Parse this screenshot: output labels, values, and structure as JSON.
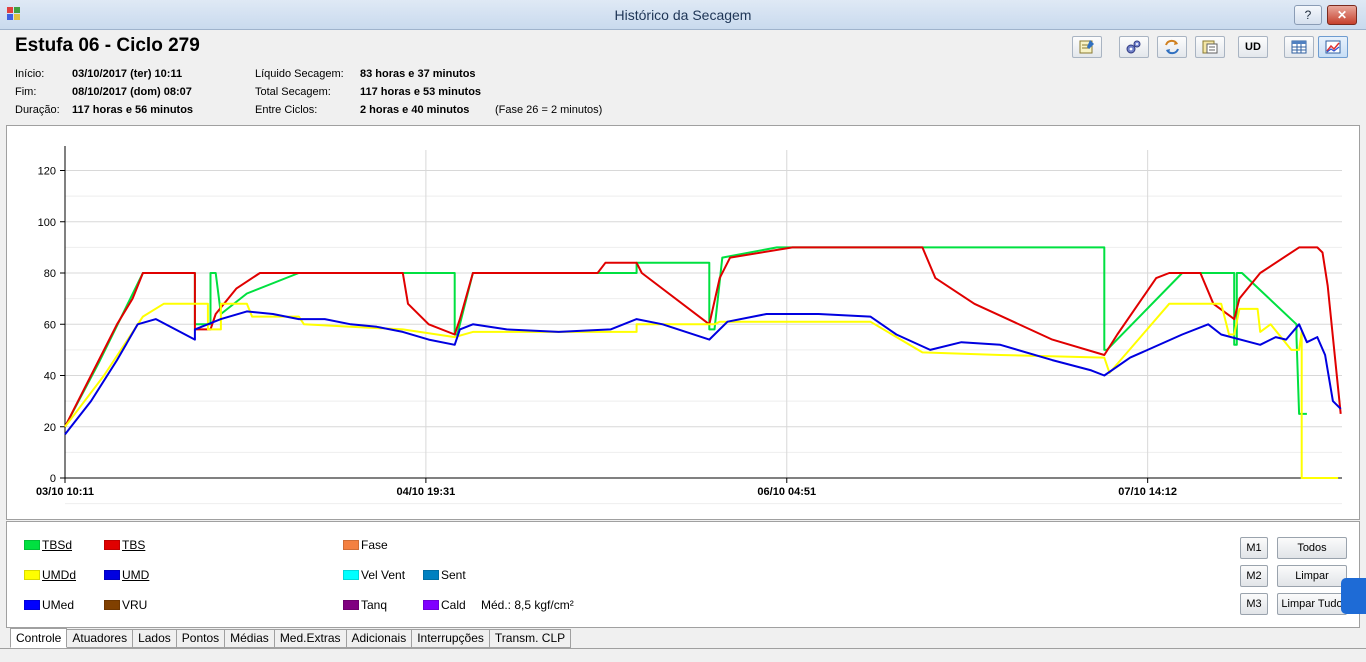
{
  "window": {
    "title": "Histórico da Secagem",
    "help_label": "?",
    "close_label": "✕"
  },
  "header": {
    "title": "Estufa 06 - Ciclo 279",
    "inicio_label": "Início:",
    "inicio_value": "03/10/2017 (ter) 10:11",
    "fim_label": "Fim:",
    "fim_value": "08/10/2017 (dom) 08:07",
    "duracao_label": "Duração:",
    "duracao_value": "117 horas e 56 minutos",
    "liquido_label": "Líquido Secagem:",
    "liquido_value": "83 horas e 37 minutos",
    "total_label": "Total Secagem:",
    "total_value": "117 horas e 53 minutos",
    "entre_label": "Entre Ciclos:",
    "entre_value": "2 horas e 40 minutos",
    "fase_note": "(Fase 26 = 2 minutos)"
  },
  "toolbar": {
    "icons": [
      "report-icon",
      "settings-icon",
      "refresh-icon",
      "export-icon"
    ],
    "ud_label": "UD",
    "table_icon": "table-icon",
    "chart_icon": "chart-icon"
  },
  "legend": {
    "items": [
      {
        "label": "TBSd",
        "color": "#00e040"
      },
      {
        "label": "TBS",
        "color": "#e00000"
      },
      {
        "label": "Fase",
        "color": "#f48040"
      },
      {
        "label": "UMDd",
        "color": "#ffff00"
      },
      {
        "label": "UMD",
        "color": "#0000e0"
      },
      {
        "label": "Vel Vent",
        "color": "#00ffff"
      },
      {
        "label": "Sent",
        "color": "#0080c0"
      },
      {
        "label": "UMed",
        "color": "#0000ff"
      },
      {
        "label": "VRU",
        "color": "#804000"
      },
      {
        "label": "Tanq",
        "color": "#800080"
      },
      {
        "label": "Cald",
        "color": "#8000ff"
      }
    ],
    "med_text": "Méd.: 8,5 kgf/cm²",
    "m1": "M1",
    "m2": "M2",
    "m3": "M3",
    "todos": "Todos",
    "limpar": "Limpar",
    "limpar_tudo": "Limpar Tudo"
  },
  "tabs": [
    "Controle",
    "Atuadores",
    "Lados",
    "Pontos",
    "Médias",
    "Med.Extras",
    "Adicionais",
    "Interrupções",
    "Transm. CLP"
  ],
  "chart_data": {
    "type": "line",
    "ylim": [
      0,
      128
    ],
    "xlim": [
      0,
      4.915
    ],
    "yticks": [
      0,
      20,
      40,
      60,
      80,
      100,
      120
    ],
    "xticks": [
      {
        "x": 0,
        "label": "03/10 10:11"
      },
      {
        "x": 1.389,
        "label": "04/10 19:31"
      },
      {
        "x": 2.778,
        "label": "06/10 04:51"
      },
      {
        "x": 4.167,
        "label": "07/10 14:12"
      }
    ],
    "grid": true,
    "series": [
      {
        "name": "TBSd",
        "color": "#00e040",
        "points": [
          [
            0,
            20
          ],
          [
            0.13,
            45
          ],
          [
            0.3,
            80
          ],
          [
            0.5,
            80
          ],
          [
            0.5,
            60
          ],
          [
            0.56,
            60
          ],
          [
            0.56,
            80
          ],
          [
            0.58,
            80
          ],
          [
            0.6,
            64
          ],
          [
            0.7,
            72
          ],
          [
            0.9,
            80
          ],
          [
            1.5,
            80
          ],
          [
            1.5,
            56
          ],
          [
            1.51,
            56
          ],
          [
            1.57,
            80
          ],
          [
            2.2,
            80
          ],
          [
            2.2,
            84
          ],
          [
            2.48,
            84
          ],
          [
            2.48,
            58
          ],
          [
            2.5,
            58
          ],
          [
            2.53,
            86
          ],
          [
            2.74,
            90
          ],
          [
            4.0,
            90
          ],
          [
            4.0,
            50
          ],
          [
            4.01,
            50
          ],
          [
            4.3,
            80
          ],
          [
            4.5,
            80
          ],
          [
            4.5,
            52
          ],
          [
            4.51,
            52
          ],
          [
            4.51,
            80
          ],
          [
            4.53,
            80
          ],
          [
            4.74,
            60
          ],
          [
            4.74,
            55
          ],
          [
            4.75,
            25
          ],
          [
            4.78,
            25
          ]
        ]
      },
      {
        "name": "TBS",
        "color": "#e00000",
        "points": [
          [
            0,
            20
          ],
          [
            0.15,
            50
          ],
          [
            0.2,
            60
          ],
          [
            0.26,
            70
          ],
          [
            0.3,
            80
          ],
          [
            0.5,
            80
          ],
          [
            0.5,
            58
          ],
          [
            0.56,
            58
          ],
          [
            0.58,
            64
          ],
          [
            0.66,
            74
          ],
          [
            0.75,
            80
          ],
          [
            1.3,
            80
          ],
          [
            1.32,
            68
          ],
          [
            1.4,
            60
          ],
          [
            1.5,
            56
          ],
          [
            1.52,
            62
          ],
          [
            1.57,
            80
          ],
          [
            2.05,
            80
          ],
          [
            2.08,
            84
          ],
          [
            2.2,
            84
          ],
          [
            2.22,
            80
          ],
          [
            2.48,
            60
          ],
          [
            2.52,
            78
          ],
          [
            2.56,
            86
          ],
          [
            2.8,
            90
          ],
          [
            3.3,
            90
          ],
          [
            3.35,
            78
          ],
          [
            3.5,
            68
          ],
          [
            3.8,
            54
          ],
          [
            4.0,
            48
          ],
          [
            4.05,
            56
          ],
          [
            4.2,
            78
          ],
          [
            4.25,
            80
          ],
          [
            4.37,
            80
          ],
          [
            4.42,
            68
          ],
          [
            4.5,
            62
          ],
          [
            4.52,
            70
          ],
          [
            4.6,
            80
          ],
          [
            4.75,
            90
          ],
          [
            4.82,
            90
          ],
          [
            4.84,
            88
          ],
          [
            4.86,
            75
          ],
          [
            4.91,
            25
          ]
        ]
      },
      {
        "name": "UMDd",
        "color": "#ffff00",
        "points": [
          [
            0,
            20
          ],
          [
            0.15,
            40
          ],
          [
            0.3,
            63
          ],
          [
            0.38,
            68
          ],
          [
            0.55,
            68
          ],
          [
            0.55,
            58
          ],
          [
            0.6,
            58
          ],
          [
            0.6,
            68
          ],
          [
            0.7,
            68
          ],
          [
            0.72,
            63
          ],
          [
            0.9,
            63
          ],
          [
            0.92,
            60
          ],
          [
            1.1,
            59
          ],
          [
            1.3,
            58
          ],
          [
            1.5,
            55
          ],
          [
            1.57,
            57
          ],
          [
            2.2,
            57
          ],
          [
            2.2,
            60
          ],
          [
            2.5,
            60
          ],
          [
            2.52,
            61
          ],
          [
            2.8,
            61
          ],
          [
            3.1,
            61
          ],
          [
            3.3,
            49
          ],
          [
            3.6,
            48
          ],
          [
            4.0,
            47
          ],
          [
            4.02,
            41
          ],
          [
            4.25,
            68
          ],
          [
            4.45,
            68
          ],
          [
            4.48,
            56
          ],
          [
            4.5,
            56
          ],
          [
            4.52,
            66
          ],
          [
            4.59,
            66
          ],
          [
            4.6,
            57
          ],
          [
            4.64,
            60
          ],
          [
            4.72,
            50
          ],
          [
            4.75,
            50
          ],
          [
            4.76,
            57
          ],
          [
            4.76,
            0
          ],
          [
            4.9,
            0
          ]
        ]
      },
      {
        "name": "UMD",
        "color": "#0000e0",
        "points": [
          [
            0,
            17
          ],
          [
            0.1,
            30
          ],
          [
            0.2,
            46
          ],
          [
            0.28,
            60
          ],
          [
            0.35,
            62
          ],
          [
            0.5,
            54
          ],
          [
            0.5,
            58
          ],
          [
            0.6,
            62
          ],
          [
            0.7,
            65
          ],
          [
            0.8,
            64
          ],
          [
            0.9,
            62
          ],
          [
            1.0,
            62
          ],
          [
            1.1,
            60
          ],
          [
            1.2,
            59
          ],
          [
            1.3,
            57
          ],
          [
            1.4,
            54
          ],
          [
            1.5,
            52
          ],
          [
            1.52,
            58
          ],
          [
            1.57,
            60
          ],
          [
            1.7,
            58
          ],
          [
            1.9,
            57
          ],
          [
            2.1,
            58
          ],
          [
            2.2,
            62
          ],
          [
            2.3,
            60
          ],
          [
            2.48,
            54
          ],
          [
            2.55,
            61
          ],
          [
            2.7,
            64
          ],
          [
            2.9,
            64
          ],
          [
            3.1,
            63
          ],
          [
            3.2,
            56
          ],
          [
            3.33,
            50
          ],
          [
            3.45,
            53
          ],
          [
            3.6,
            52
          ],
          [
            3.8,
            46
          ],
          [
            3.95,
            42
          ],
          [
            4.0,
            40
          ],
          [
            4.1,
            47
          ],
          [
            4.3,
            56
          ],
          [
            4.4,
            60
          ],
          [
            4.45,
            56
          ],
          [
            4.6,
            52
          ],
          [
            4.66,
            55
          ],
          [
            4.7,
            54
          ],
          [
            4.75,
            60
          ],
          [
            4.78,
            53
          ],
          [
            4.82,
            55
          ],
          [
            4.85,
            48
          ],
          [
            4.88,
            30
          ],
          [
            4.91,
            27
          ]
        ]
      }
    ]
  }
}
